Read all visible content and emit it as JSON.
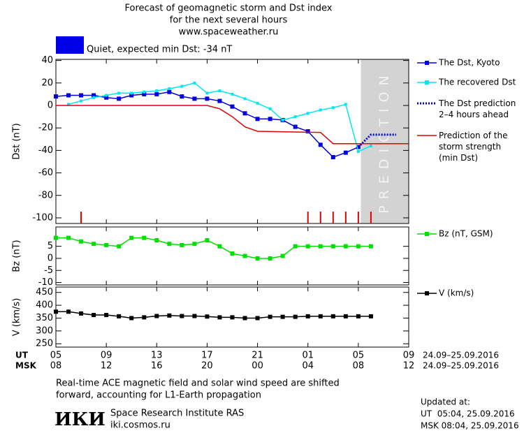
{
  "header": {
    "title": [
      "Forecast of geomagnetic storm and Dst index",
      "for the next several hours",
      "www.spaceweather.ru"
    ],
    "status": "Quiet, expected min Dst: -34 nT",
    "status_color": "#0000e8"
  },
  "chart_data": [
    {
      "type": "line",
      "ylabel": "Dst (nT)",
      "xlim": [
        0,
        28
      ],
      "ylim": [
        -105,
        41
      ],
      "yticks": [
        -100,
        -80,
        -60,
        -40,
        -20,
        0,
        20,
        40
      ],
      "prediction_region": {
        "x": [
          24.2,
          28
        ],
        "label": "PREDICTION",
        "color": "#d3d3d3"
      },
      "event_marks": {
        "x": [
          2,
          20,
          21,
          22,
          23,
          24,
          25
        ],
        "color": "#e00000"
      },
      "series": [
        {
          "name": "The Dst, Kyoto",
          "color": "#0000e0",
          "marker": "square",
          "x": [
            0,
            1,
            2,
            3,
            4,
            5,
            6,
            7,
            8,
            9,
            10,
            11,
            12,
            13,
            14,
            15,
            16,
            17,
            18,
            19,
            20,
            21,
            22,
            23,
            24
          ],
          "values": [
            8,
            9,
            9,
            9,
            7,
            6,
            9,
            10,
            10,
            12,
            8,
            6,
            6,
            4,
            -1,
            -7,
            -12,
            -12,
            -13,
            -19,
            -23,
            -35,
            -46,
            -42,
            -37
          ]
        },
        {
          "name": "The recovered Dst",
          "color": "#00e8f0",
          "marker": "small-square",
          "x": [
            1,
            2,
            3,
            4,
            5,
            6,
            7,
            8,
            9,
            10,
            11,
            12,
            13,
            14,
            15,
            16,
            17,
            18,
            19,
            20,
            21,
            22,
            23,
            24,
            25
          ],
          "values": [
            1,
            4,
            7,
            9,
            11,
            11,
            12,
            13,
            15,
            17,
            20,
            11,
            13,
            10,
            6,
            2,
            -3,
            -13,
            -10,
            -7,
            -4,
            -2,
            1,
            -41,
            -36
          ]
        },
        {
          "name": "The Dst prediction\n2–4 hours ahead",
          "color": "#0000e0",
          "dash": true,
          "x": [
            24,
            25,
            27
          ],
          "values": [
            -37,
            -26,
            -26
          ]
        },
        {
          "name": "Prediction of the\nstorm strength\n(min Dst)",
          "color": "#e00000",
          "x": [
            0,
            12,
            13,
            14,
            15,
            16,
            21,
            22,
            28
          ],
          "values": [
            0,
            0,
            -3,
            -10,
            -19,
            -23,
            -24,
            -34,
            -34
          ]
        }
      ]
    },
    {
      "type": "line",
      "ylabel": "Bz (nT)",
      "xlim": [
        0,
        28
      ],
      "ylim": [
        -11,
        13
      ],
      "yticks": [
        -10,
        -5,
        0,
        5
      ],
      "series": [
        {
          "name": "Bz (nT, GSM)",
          "color": "#00e000",
          "marker": "square",
          "x": [
            0,
            1,
            2,
            3,
            4,
            5,
            6,
            7,
            8,
            9,
            10,
            11,
            12,
            13,
            14,
            15,
            16,
            17,
            18,
            19,
            20,
            21,
            22,
            23,
            24,
            25
          ],
          "values": [
            8.5,
            8.5,
            7,
            6,
            5.5,
            5,
            8.5,
            8.5,
            7.5,
            6,
            5.5,
            6,
            7.5,
            5,
            2,
            1,
            0,
            0,
            1,
            5,
            5,
            5,
            5,
            5,
            5,
            5
          ]
        }
      ]
    },
    {
      "type": "line",
      "ylabel": "V (km/s)",
      "xlim": [
        0,
        28
      ],
      "ylim": [
        237,
        471
      ],
      "yticks": [
        250,
        300,
        350,
        400,
        450
      ],
      "series": [
        {
          "name": "V (km/s)",
          "color": "#000000",
          "marker": "square",
          "x": [
            0,
            1,
            2,
            3,
            4,
            5,
            6,
            7,
            8,
            9,
            10,
            11,
            12,
            13,
            14,
            15,
            16,
            17,
            18,
            19,
            20,
            21,
            22,
            23,
            24,
            25
          ],
          "values": [
            375,
            375,
            368,
            362,
            362,
            357,
            350,
            353,
            358,
            360,
            358,
            358,
            356,
            353,
            353,
            350,
            350,
            355,
            355,
            355,
            357,
            357,
            357,
            357,
            357,
            357
          ]
        }
      ]
    }
  ],
  "x_axis": {
    "rows": [
      {
        "label": "UT",
        "dates": "24.09–25.09.2016",
        "ticks": [
          {
            "value": 0,
            "label": "05"
          },
          {
            "value": 4,
            "label": "09"
          },
          {
            "value": 8,
            "label": "13"
          },
          {
            "value": 12,
            "label": "17"
          },
          {
            "value": 16,
            "label": "21"
          },
          {
            "value": 20,
            "label": "01"
          },
          {
            "value": 24,
            "label": "05"
          },
          {
            "value": 28,
            "label": "09"
          }
        ]
      },
      {
        "label": "MSK",
        "dates": "24.09–25.09.2016",
        "ticks": [
          {
            "value": 0,
            "label": "08"
          },
          {
            "value": 4,
            "label": "12"
          },
          {
            "value": 8,
            "label": "16"
          },
          {
            "value": 12,
            "label": "20"
          },
          {
            "value": 16,
            "label": "00"
          },
          {
            "value": 20,
            "label": "04"
          },
          {
            "value": 24,
            "label": "08"
          },
          {
            "value": 28,
            "label": "12"
          }
        ]
      }
    ]
  },
  "footer": {
    "note": [
      "Real-time ACE magnetic field and solar wind speed are shifted",
      "forward, accounting for L1-Earth propagation"
    ],
    "logo": "ИКИ",
    "institute": "Space Research Institute RAS",
    "site": "iki.cosmos.ru",
    "updated": [
      "Updated at:",
      "UT  05:04, 25.09.2016",
      "MSK 08:04, 25.09.2016"
    ]
  }
}
